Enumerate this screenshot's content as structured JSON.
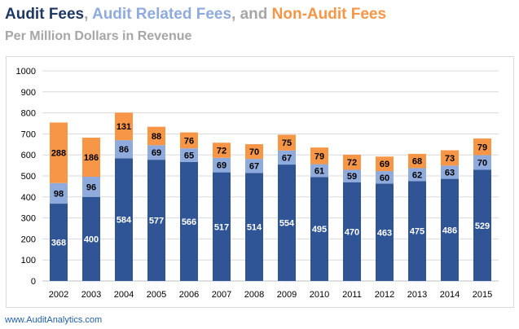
{
  "title": {
    "part1": "Audit Fees",
    "sep1": ", ",
    "part2": "Audit Related Fees",
    "sep2": ", and ",
    "part3": "Non-Audit Fees"
  },
  "subtitle": "Per Million Dollars in Revenue",
  "footer": "www.AuditAnalytics.com",
  "colors": {
    "audit": "#2f5597",
    "audit_related": "#8faadc",
    "non_audit": "#f79646",
    "title_audit": "#1f3864",
    "gridline": "#d9d9d9",
    "axis_text": "#000000"
  },
  "chart_data": {
    "type": "bar",
    "stacked": true,
    "title": "Audit Fees, Audit Related Fees, and Non-Audit Fees",
    "subtitle": "Per Million Dollars in Revenue",
    "categories": [
      "2002",
      "2003",
      "2004",
      "2005",
      "2006",
      "2007",
      "2008",
      "2009",
      "2010",
      "2011",
      "2012",
      "2013",
      "2014",
      "2015"
    ],
    "series": [
      {
        "name": "Audit Fees",
        "values": [
          368,
          400,
          584,
          577,
          566,
          517,
          514,
          554,
          495,
          470,
          463,
          475,
          486,
          529
        ]
      },
      {
        "name": "Audit Related Fees",
        "values": [
          98,
          96,
          86,
          69,
          65,
          69,
          67,
          67,
          61,
          59,
          60,
          62,
          63,
          70
        ]
      },
      {
        "name": "Non-Audit Fees",
        "values": [
          288,
          186,
          131,
          88,
          76,
          72,
          70,
          75,
          79,
          72,
          69,
          68,
          73,
          79
        ]
      }
    ],
    "ylim": [
      0,
      1000
    ],
    "yticks": [
      0,
      100,
      200,
      300,
      400,
      500,
      600,
      700,
      800,
      900,
      1000
    ],
    "grid": true,
    "legend": "title-colored",
    "xlabel": "",
    "ylabel": ""
  }
}
